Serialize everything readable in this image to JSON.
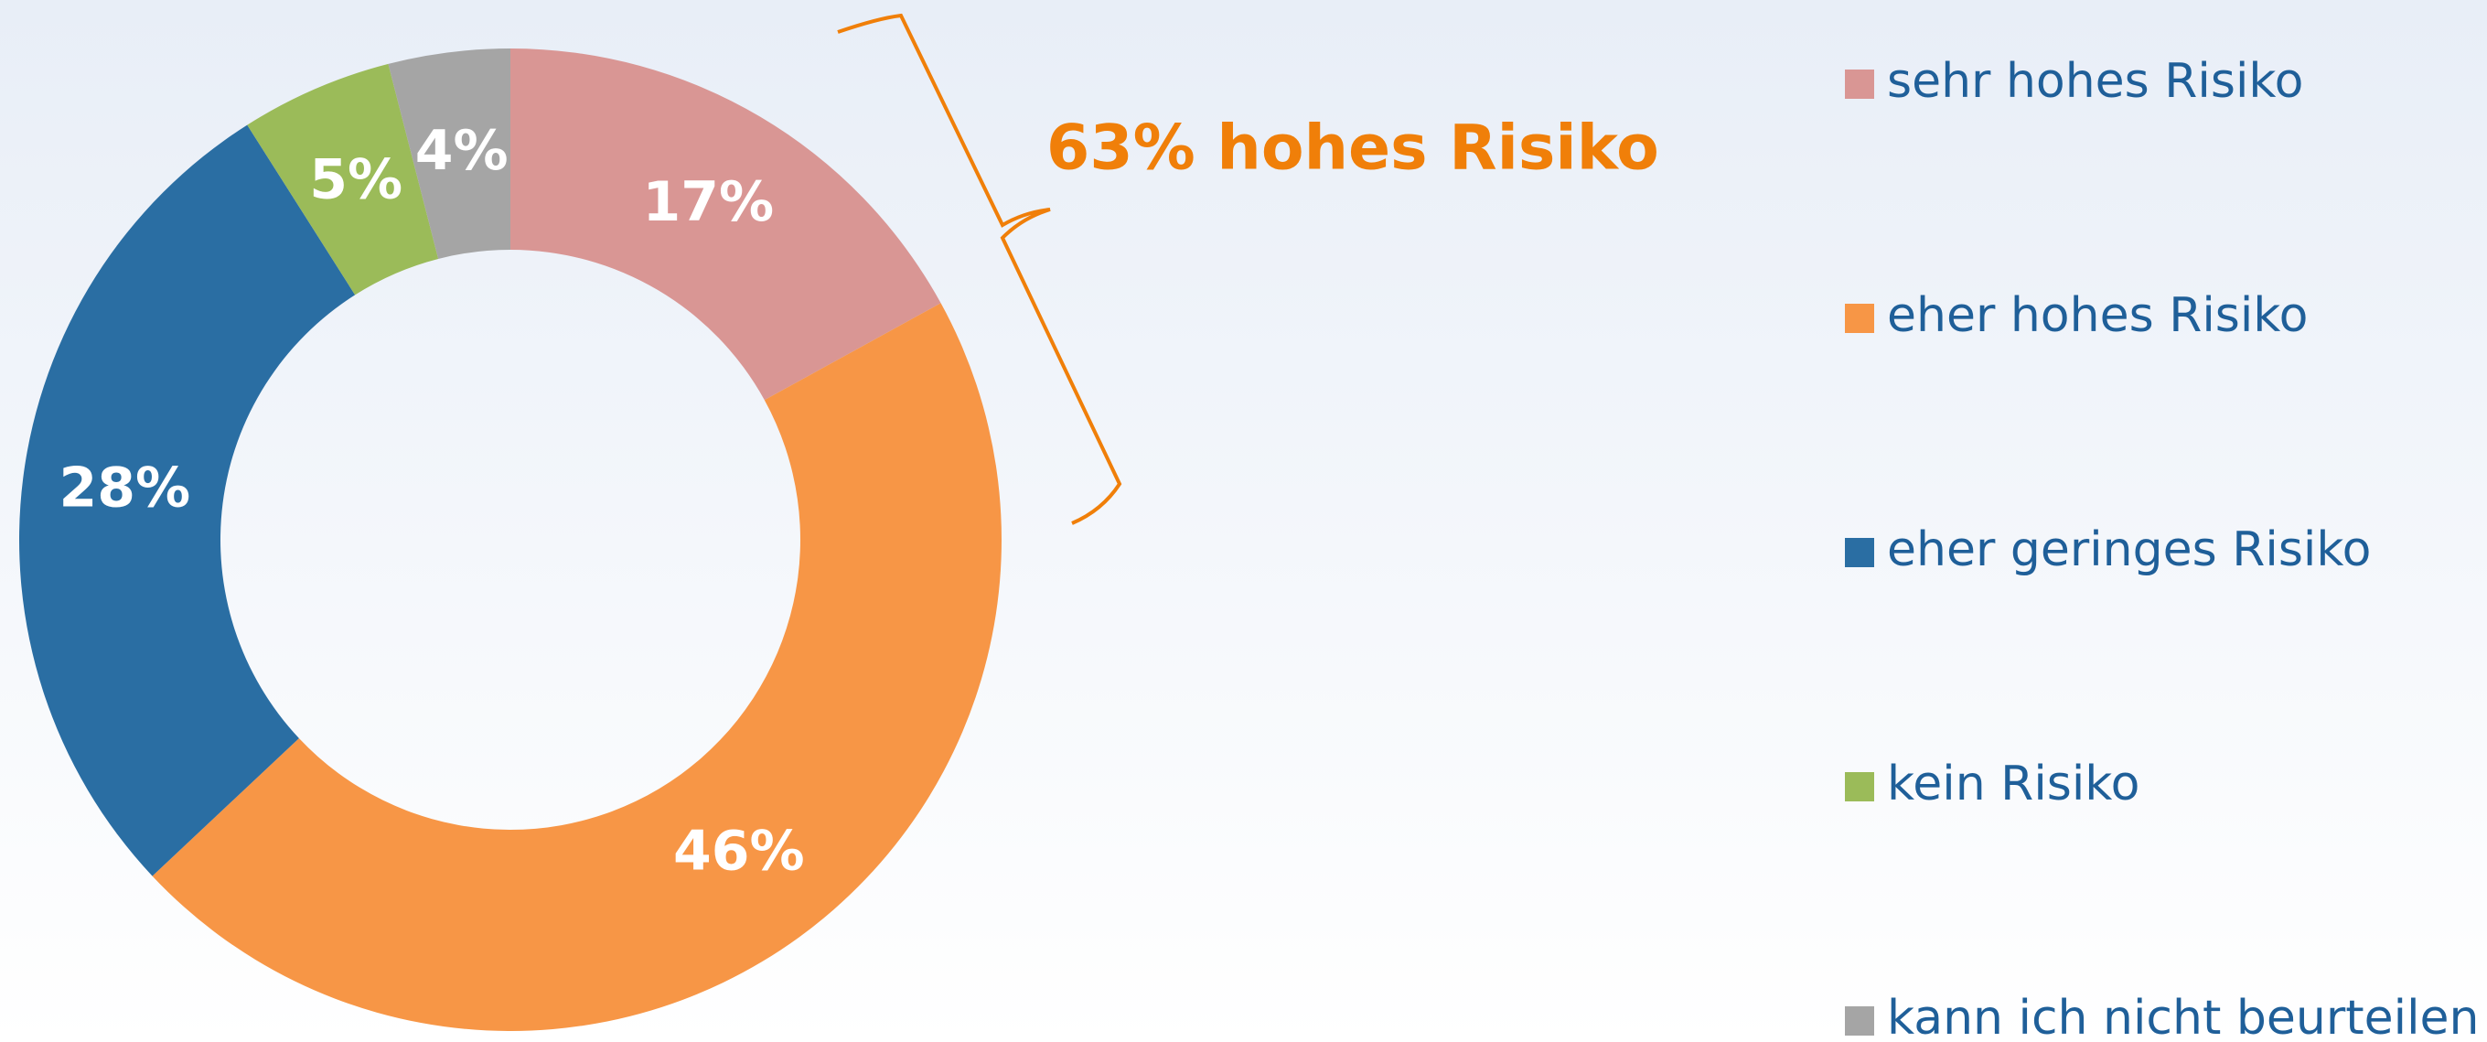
{
  "chart_data": {
    "type": "donut",
    "categories": [
      "sehr hohes Risiko",
      "eher hohes Risiko",
      "eher geringes Risiko",
      "kein Risiko",
      "kann ich nicht beurteilen"
    ],
    "values": [
      17,
      46,
      28,
      5,
      4
    ],
    "value_labels": [
      "17%",
      "46%",
      "28%",
      "5%",
      "4%"
    ],
    "colors": [
      "#d99694",
      "#f79646",
      "#2a6ea3",
      "#9bbb59",
      "#a5a5a5"
    ],
    "annotation": "63% hohes Risiko",
    "legend": "right"
  }
}
